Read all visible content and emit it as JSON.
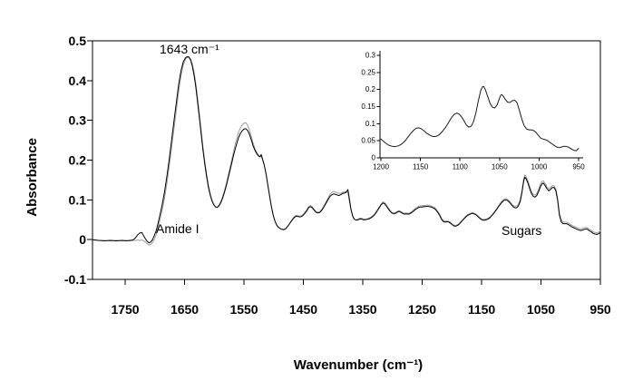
{
  "figure": {
    "background": "#ffffff",
    "axis_color": "#000000",
    "annotations": {
      "peak_label": "1643 cm⁻¹",
      "amide_label": "Amide I",
      "sugars_label": "Sugars"
    }
  },
  "chart_data": [
    {
      "id": "main-spectrum",
      "type": "line",
      "title": "",
      "xlabel": "Wavenumber (cm⁻¹)",
      "ylabel": "Absorbance",
      "xlim": [
        1805,
        950
      ],
      "ylim": [
        -0.1,
        0.5
      ],
      "x_axis_reversed": true,
      "grid": false,
      "legend": "none",
      "x_ticks": [
        1750,
        1650,
        1550,
        1450,
        1350,
        1250,
        1150,
        1050,
        950
      ],
      "x_tick_labels": [
        "1750",
        "1650",
        "1550",
        "1450",
        "1350",
        "1250",
        "1150",
        "1050",
        "950"
      ],
      "y_ticks": [
        -0.1,
        0,
        0.1,
        0.2,
        0.3,
        0.4,
        0.5
      ],
      "y_tick_labels": [
        "-0.1",
        "0",
        "0.1",
        "0.2",
        "0.3",
        "0.4",
        "0.5"
      ],
      "annotations": [
        {
          "text": "1643 cm⁻¹",
          "x": 1643,
          "y": 0.47
        },
        {
          "text": "Amide I",
          "x": 1690,
          "y": 0.03
        },
        {
          "text": "Sugars",
          "x": 1113,
          "y": 0.025
        }
      ],
      "x": [
        1805,
        1795,
        1785,
        1775,
        1765,
        1755,
        1748,
        1742,
        1737,
        1733,
        1729,
        1725,
        1722,
        1719,
        1716,
        1713,
        1710,
        1707,
        1704,
        1701,
        1698,
        1695,
        1692,
        1688,
        1684,
        1680,
        1676,
        1672,
        1668,
        1664,
        1660,
        1656,
        1652,
        1648,
        1645,
        1643,
        1640,
        1637,
        1634,
        1631,
        1628,
        1625,
        1622,
        1619,
        1616,
        1613,
        1610,
        1607,
        1604,
        1601,
        1598,
        1595,
        1592,
        1589,
        1586,
        1583,
        1580,
        1577,
        1574,
        1571,
        1568,
        1565,
        1562,
        1559,
        1556,
        1553,
        1550,
        1547,
        1544,
        1541,
        1538,
        1535,
        1532,
        1529,
        1526,
        1523,
        1521,
        1519,
        1516,
        1513,
        1510,
        1507,
        1504,
        1501,
        1498,
        1495,
        1492,
        1489,
        1486,
        1483,
        1480,
        1477,
        1474,
        1471,
        1468,
        1465,
        1462,
        1459,
        1456,
        1453,
        1450,
        1447,
        1444,
        1441,
        1438,
        1435,
        1432,
        1429,
        1426,
        1423,
        1420,
        1417,
        1414,
        1411,
        1408,
        1405,
        1402,
        1399,
        1396,
        1393,
        1390,
        1387,
        1384,
        1381,
        1378,
        1375,
        1373,
        1370,
        1367,
        1364,
        1361,
        1358,
        1355,
        1352,
        1349,
        1346,
        1343,
        1340,
        1337,
        1334,
        1331,
        1328,
        1325,
        1322,
        1319,
        1316,
        1313,
        1310,
        1307,
        1304,
        1301,
        1298,
        1295,
        1292,
        1289,
        1286,
        1283,
        1280,
        1277,
        1274,
        1271,
        1268,
        1265,
        1262,
        1259,
        1256,
        1253,
        1250,
        1247,
        1244,
        1241,
        1238,
        1235,
        1232,
        1229,
        1226,
        1223,
        1220,
        1217,
        1214,
        1211,
        1208,
        1205,
        1202,
        1199,
        1196,
        1193,
        1190,
        1187,
        1184,
        1181,
        1178,
        1175,
        1172,
        1169,
        1166,
        1163,
        1160,
        1157,
        1154,
        1151,
        1148,
        1145,
        1142,
        1139,
        1136,
        1133,
        1130,
        1127,
        1124,
        1121,
        1118,
        1115,
        1112,
        1109,
        1106,
        1103,
        1100,
        1097,
        1094,
        1091,
        1088,
        1085,
        1082,
        1079,
        1077,
        1075,
        1072,
        1069,
        1066,
        1063,
        1060,
        1057,
        1054,
        1051,
        1048,
        1046,
        1043,
        1040,
        1037,
        1034,
        1031,
        1028,
        1025,
        1022,
        1019,
        1016,
        1013,
        1010,
        1007,
        1004,
        1001,
        998,
        995,
        992,
        989,
        986,
        983,
        980,
        977,
        974,
        971,
        968,
        965,
        962,
        959,
        956,
        953,
        950
      ],
      "series": [
        {
          "name": "spectrum-black",
          "color": "#000000",
          "values": [
            0,
            -0.002,
            -0.003,
            -0.002,
            -0.003,
            -0.002,
            -0.003,
            -0.002,
            -0.001,
            0.004,
            0.012,
            0.017,
            0.018,
            0.01,
            0.002,
            -0.004,
            -0.008,
            -0.006,
            0,
            0.01,
            0.022,
            0.038,
            0.058,
            0.085,
            0.118,
            0.157,
            0.2,
            0.248,
            0.296,
            0.344,
            0.39,
            0.425,
            0.448,
            0.458,
            0.46,
            0.459,
            0.452,
            0.437,
            0.413,
            0.382,
            0.345,
            0.305,
            0.264,
            0.225,
            0.19,
            0.159,
            0.133,
            0.113,
            0.098,
            0.088,
            0.082,
            0.081,
            0.085,
            0.093,
            0.104,
            0.118,
            0.134,
            0.152,
            0.171,
            0.19,
            0.209,
            0.227,
            0.243,
            0.257,
            0.267,
            0.274,
            0.278,
            0.279,
            0.275,
            0.266,
            0.252,
            0.238,
            0.226,
            0.217,
            0.211,
            0.208,
            0.214,
            0.204,
            0.188,
            0.166,
            0.139,
            0.111,
            0.085,
            0.063,
            0.047,
            0.037,
            0.031,
            0.028,
            0.026,
            0.025,
            0.027,
            0.032,
            0.038,
            0.045,
            0.051,
            0.056,
            0.059,
            0.058,
            0.057,
            0.058,
            0.062,
            0.067,
            0.073,
            0.081,
            0.083,
            0.08,
            0.074,
            0.069,
            0.067,
            0.068,
            0.072,
            0.078,
            0.086,
            0.094,
            0.102,
            0.109,
            0.113,
            0.115,
            0.114,
            0.112,
            0.111,
            0.113,
            0.116,
            0.117,
            0.119,
            0.126,
            0.108,
            0.078,
            0.059,
            0.051,
            0.049,
            0.05,
            0.052,
            0.052,
            0.05,
            0.05,
            0.051,
            0.052,
            0.054,
            0.057,
            0.061,
            0.067,
            0.074,
            0.081,
            0.088,
            0.092,
            0.09,
            0.084,
            0.077,
            0.071,
            0.067,
            0.065,
            0.066,
            0.069,
            0.071,
            0.069,
            0.066,
            0.064,
            0.065,
            0.064,
            0.065,
            0.068,
            0.071,
            0.075,
            0.078,
            0.081,
            0.082,
            0.082,
            0.083,
            0.083,
            0.084,
            0.083,
            0.082,
            0.08,
            0.078,
            0.073,
            0.067,
            0.059,
            0.05,
            0.045,
            0.044,
            0.045,
            0.044,
            0.041,
            0.037,
            0.034,
            0.034,
            0.036,
            0.04,
            0.045,
            0.05,
            0.055,
            0.059,
            0.062,
            0.064,
            0.066,
            0.065,
            0.063,
            0.059,
            0.055,
            0.051,
            0.049,
            0.049,
            0.05,
            0.052,
            0.055,
            0.06,
            0.065,
            0.071,
            0.077,
            0.084,
            0.09,
            0.095,
            0.099,
            0.1,
            0.098,
            0.094,
            0.088,
            0.083,
            0.08,
            0.08,
            0.085,
            0.096,
            0.118,
            0.148,
            0.157,
            0.153,
            0.142,
            0.128,
            0.116,
            0.109,
            0.107,
            0.111,
            0.121,
            0.133,
            0.141,
            0.142,
            0.136,
            0.128,
            0.123,
            0.126,
            0.131,
            0.131,
            0.123,
            0.1,
            0.062,
            0.045,
            0.04,
            0.04,
            0.04,
            0.038,
            0.035,
            0.032,
            0.03,
            0.028,
            0.026,
            0.024,
            0.023,
            0.024,
            0.026,
            0.027,
            0.025,
            0.022,
            0.019,
            0.016,
            0.014,
            0.013,
            0.015,
            0.018
          ]
        },
        {
          "name": "spectrum-gray",
          "color": "#9e9e9e",
          "values": [
            0,
            -0.002,
            -0.002,
            -0.003,
            -0.002,
            -0.003,
            -0.002,
            -0.003,
            -0.002,
            -0.002,
            -0.001,
            -0.002,
            -0.001,
            -0.003,
            -0.006,
            -0.01,
            -0.014,
            -0.012,
            -0.007,
            0,
            0.012,
            0.028,
            0.046,
            0.072,
            0.103,
            0.14,
            0.182,
            0.228,
            0.276,
            0.324,
            0.372,
            0.412,
            0.44,
            0.455,
            0.459,
            0.46,
            0.455,
            0.443,
            0.422,
            0.392,
            0.356,
            0.316,
            0.274,
            0.234,
            0.198,
            0.166,
            0.139,
            0.117,
            0.101,
            0.09,
            0.083,
            0.082,
            0.087,
            0.096,
            0.108,
            0.123,
            0.14,
            0.159,
            0.179,
            0.199,
            0.219,
            0.238,
            0.255,
            0.27,
            0.281,
            0.289,
            0.293,
            0.294,
            0.288,
            0.277,
            0.261,
            0.245,
            0.231,
            0.221,
            0.214,
            0.21,
            0.209,
            0.203,
            0.188,
            0.166,
            0.139,
            0.111,
            0.085,
            0.063,
            0.047,
            0.037,
            0.031,
            0.028,
            0.026,
            0.026,
            0.028,
            0.033,
            0.039,
            0.046,
            0.053,
            0.058,
            0.061,
            0.06,
            0.059,
            0.06,
            0.064,
            0.07,
            0.076,
            0.084,
            0.086,
            0.083,
            0.077,
            0.072,
            0.069,
            0.07,
            0.074,
            0.081,
            0.089,
            0.098,
            0.106,
            0.114,
            0.119,
            0.121,
            0.12,
            0.117,
            0.116,
            0.117,
            0.119,
            0.12,
            0.121,
            0.118,
            0.1,
            0.075,
            0.058,
            0.051,
            0.05,
            0.052,
            0.054,
            0.054,
            0.052,
            0.051,
            0.052,
            0.054,
            0.056,
            0.059,
            0.063,
            0.069,
            0.076,
            0.083,
            0.09,
            0.095,
            0.093,
            0.087,
            0.08,
            0.074,
            0.069,
            0.067,
            0.068,
            0.071,
            0.073,
            0.071,
            0.068,
            0.066,
            0.067,
            0.066,
            0.067,
            0.07,
            0.074,
            0.078,
            0.081,
            0.084,
            0.085,
            0.085,
            0.086,
            0.086,
            0.087,
            0.086,
            0.085,
            0.083,
            0.081,
            0.076,
            0.07,
            0.062,
            0.053,
            0.048,
            0.046,
            0.047,
            0.046,
            0.043,
            0.039,
            0.036,
            0.036,
            0.038,
            0.042,
            0.047,
            0.052,
            0.057,
            0.061,
            0.064,
            0.066,
            0.068,
            0.067,
            0.065,
            0.061,
            0.057,
            0.053,
            0.051,
            0.051,
            0.052,
            0.054,
            0.057,
            0.062,
            0.067,
            0.073,
            0.079,
            0.086,
            0.093,
            0.098,
            0.102,
            0.103,
            0.101,
            0.097,
            0.091,
            0.086,
            0.084,
            0.084,
            0.089,
            0.1,
            0.123,
            0.154,
            0.163,
            0.159,
            0.148,
            0.134,
            0.121,
            0.114,
            0.112,
            0.116,
            0.127,
            0.139,
            0.147,
            0.148,
            0.141,
            0.133,
            0.128,
            0.131,
            0.136,
            0.136,
            0.128,
            0.105,
            0.067,
            0.05,
            0.044,
            0.044,
            0.044,
            0.042,
            0.039,
            0.036,
            0.034,
            0.032,
            0.03,
            0.028,
            0.027,
            0.028,
            0.03,
            0.031,
            0.029,
            0.026,
            0.023,
            0.02,
            0.018,
            0.017,
            0.019,
            0.022
          ]
        }
      ]
    },
    {
      "id": "inset-spectrum-zoom",
      "type": "line",
      "title": "",
      "xlabel": "",
      "ylabel": "",
      "xlim": [
        1200,
        950
      ],
      "ylim": [
        0,
        0.3
      ],
      "x_axis_reversed": true,
      "grid": false,
      "legend": "none",
      "x_ticks": [
        1200,
        1150,
        1100,
        1050,
        1000,
        950
      ],
      "x_tick_labels": [
        "1200",
        "1150",
        "1100",
        "1050",
        "1000",
        "950"
      ],
      "y_ticks": [
        0,
        0.05,
        0.1,
        0.15,
        0.2,
        0.25,
        0.3
      ],
      "y_tick_labels": [
        "0",
        "0.05",
        "0.1",
        "0.15",
        "0.2",
        "0.25",
        "0.3"
      ],
      "x": [
        1200,
        1195,
        1190,
        1186,
        1182,
        1178,
        1174,
        1170,
        1166,
        1162,
        1158,
        1155,
        1152,
        1149,
        1146,
        1142,
        1138,
        1134,
        1130,
        1126,
        1122,
        1118,
        1114,
        1110,
        1107,
        1104,
        1101,
        1098,
        1095,
        1092,
        1089,
        1086,
        1083,
        1080,
        1077,
        1074,
        1072,
        1070,
        1068,
        1065,
        1062,
        1059,
        1056,
        1053,
        1050,
        1048,
        1046,
        1043,
        1040,
        1037,
        1034,
        1031,
        1028,
        1025,
        1022,
        1019,
        1016,
        1013,
        1010,
        1007,
        1004,
        1001,
        998,
        995,
        992,
        989,
        986,
        983,
        980,
        977,
        974,
        971,
        968,
        965,
        962,
        959,
        956,
        953,
        950
      ],
      "series": [
        {
          "name": "inset-spectrum",
          "color": "#1a1a1a",
          "values": [
            0.055,
            0.045,
            0.037,
            0.034,
            0.033,
            0.035,
            0.04,
            0.048,
            0.06,
            0.072,
            0.082,
            0.087,
            0.088,
            0.085,
            0.08,
            0.072,
            0.066,
            0.062,
            0.063,
            0.068,
            0.078,
            0.09,
            0.105,
            0.12,
            0.128,
            0.131,
            0.128,
            0.12,
            0.108,
            0.096,
            0.09,
            0.092,
            0.105,
            0.13,
            0.165,
            0.195,
            0.207,
            0.209,
            0.2,
            0.18,
            0.16,
            0.148,
            0.146,
            0.155,
            0.175,
            0.185,
            0.183,
            0.172,
            0.163,
            0.162,
            0.167,
            0.169,
            0.162,
            0.14,
            0.115,
            0.095,
            0.085,
            0.082,
            0.082,
            0.08,
            0.075,
            0.066,
            0.058,
            0.055,
            0.053,
            0.05,
            0.045,
            0.04,
            0.035,
            0.031,
            0.03,
            0.032,
            0.034,
            0.033,
            0.03,
            0.026,
            0.022,
            0.021,
            0.027
          ]
        }
      ]
    }
  ]
}
